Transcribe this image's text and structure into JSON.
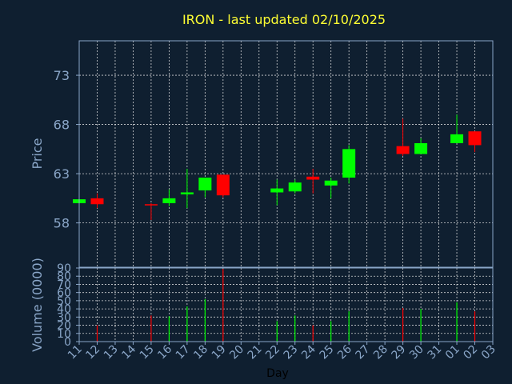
{
  "chart_data": {
    "type": "candlestick",
    "title": "IRON - last updated 02/10/2025",
    "xlabel": "Day",
    "price_ylabel": "Price",
    "volume_ylabel": "Volume (0000)",
    "price_ylim": [
      53.5,
      76.5
    ],
    "price_yticks": [
      58,
      63,
      68,
      73
    ],
    "volume_ylim": [
      0,
      90
    ],
    "volume_yticks": [
      0,
      10,
      20,
      30,
      40,
      50,
      60,
      70,
      80,
      90
    ],
    "x_ticks": [
      "11",
      "12",
      "13",
      "14",
      "15",
      "16",
      "17",
      "18",
      "19",
      "20",
      "21",
      "22",
      "23",
      "24",
      "25",
      "26",
      "27",
      "28",
      "29",
      "30",
      "31",
      "01",
      "02",
      "03"
    ],
    "grid": true,
    "colors": {
      "up": "#00ff00",
      "down": "#ff0000",
      "title": "#ffff33",
      "axis": "#8aa6c8",
      "background": "#0f1f30"
    },
    "candles": [
      {
        "day": "11",
        "open": 60.0,
        "high": 60.5,
        "low": 60.0,
        "close": 60.4,
        "volume": 0
      },
      {
        "day": "12",
        "open": 60.5,
        "high": 61.0,
        "low": 59.5,
        "close": 59.9,
        "volume": 20
      },
      {
        "day": "15",
        "open": 59.9,
        "high": 60.0,
        "low": 58.3,
        "close": 59.8,
        "volume": 32
      },
      {
        "day": "16",
        "open": 60.0,
        "high": 61.4,
        "low": 59.7,
        "close": 60.5,
        "volume": 31
      },
      {
        "day": "17",
        "open": 60.9,
        "high": 63.5,
        "low": 59.5,
        "close": 61.1,
        "volume": 43
      },
      {
        "day": "18",
        "open": 61.3,
        "high": 62.6,
        "low": 60.6,
        "close": 62.6,
        "volume": 52
      },
      {
        "day": "19",
        "open": 62.9,
        "high": 62.9,
        "low": 60.6,
        "close": 60.8,
        "volume": 89
      },
      {
        "day": "22",
        "open": 61.1,
        "high": 62.4,
        "low": 59.8,
        "close": 61.5,
        "volume": 25
      },
      {
        "day": "23",
        "open": 61.2,
        "high": 62.4,
        "low": 61.0,
        "close": 62.1,
        "volume": 32
      },
      {
        "day": "24",
        "open": 62.7,
        "high": 63.5,
        "low": 61.0,
        "close": 62.4,
        "volume": 20
      },
      {
        "day": "25",
        "open": 61.8,
        "high": 62.6,
        "low": 60.5,
        "close": 62.3,
        "volume": 25
      },
      {
        "day": "26",
        "open": 62.6,
        "high": 65.9,
        "low": 62.0,
        "close": 65.5,
        "volume": 37
      },
      {
        "day": "29",
        "open": 65.8,
        "high": 68.6,
        "low": 64.8,
        "close": 65.0,
        "volume": 41
      },
      {
        "day": "30",
        "open": 65.0,
        "high": 66.6,
        "low": 65.0,
        "close": 66.1,
        "volume": 40
      },
      {
        "day": "01",
        "open": 66.1,
        "high": 69.0,
        "low": 66.1,
        "close": 67.0,
        "volume": 48
      },
      {
        "day": "02",
        "open": 67.3,
        "high": 67.3,
        "low": 65.2,
        "close": 65.9,
        "volume": 37
      }
    ]
  }
}
